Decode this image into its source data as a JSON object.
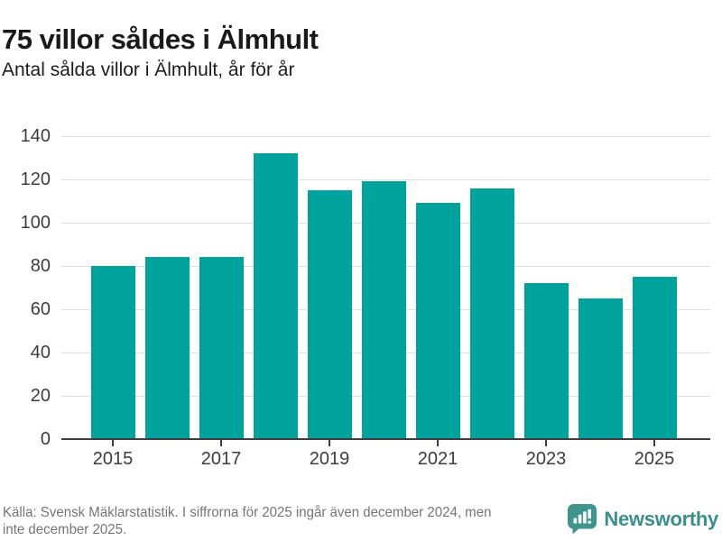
{
  "header": {
    "title": "75 villor såldes i Älmhult",
    "subtitle": "Antal sålda villor i Älmhult, år för år"
  },
  "chart_data": {
    "type": "bar",
    "title": "75 villor såldes i Älmhult",
    "subtitle": "Antal sålda villor i Älmhult, år för år",
    "categories": [
      2015,
      2016,
      2017,
      2018,
      2019,
      2020,
      2021,
      2022,
      2023,
      2024,
      2025
    ],
    "values": [
      80,
      84,
      84,
      132,
      115,
      119,
      109,
      116,
      72,
      65,
      75
    ],
    "xlabel": "",
    "ylabel": "",
    "ylim": [
      0,
      140
    ],
    "yticks": [
      0,
      20,
      40,
      60,
      80,
      100,
      120,
      140
    ],
    "xtick_labels": [
      "2015",
      "2017",
      "2019",
      "2021",
      "2023",
      "2025"
    ],
    "grid": true,
    "legend": "none",
    "bar_color": "#00a39b"
  },
  "footer": {
    "source_line1": "Källa: Svensk Mäklarstatistik. I siffrorna för 2025 ingår även december 2024, men",
    "source_line2": "inte december 2025.",
    "brand": "Newsworthy"
  },
  "colors": {
    "bar": "#00a39b",
    "brand_teal": "#3a8f8a",
    "icon_teal": "#3f968e",
    "axis": "#3d3d3d",
    "gridline": "#e0e0e0",
    "footer_gray": "#757575"
  }
}
